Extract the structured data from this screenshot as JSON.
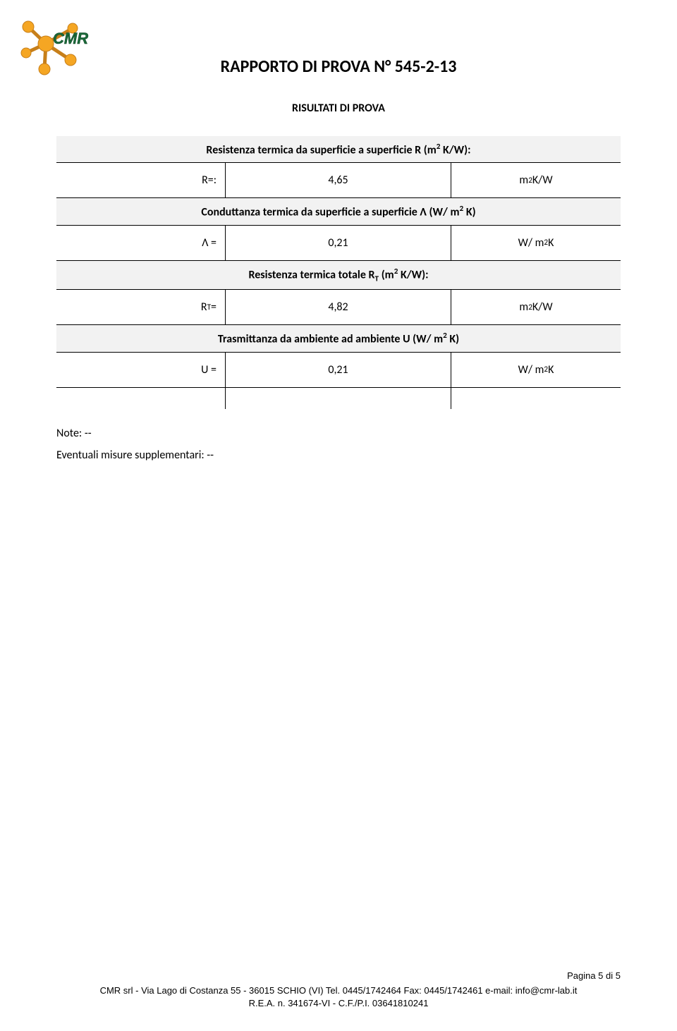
{
  "logo": {
    "text": "CMR",
    "text_color": "#1a6a3a",
    "node_color": "#f5a623",
    "stick_color": "#c77f1a"
  },
  "title": "RAPPORTO DI PROVA N° 545-2-13",
  "subtitle": "RISULTATI DI PROVA",
  "sections": [
    {
      "header_html": "Resistenza termica da superficie a superficie R (m<sup>2</sup> K/W):",
      "label": "R=:",
      "value": "4,65",
      "unit_html": "m<sup>2</sup> K/W"
    },
    {
      "header_html": "Conduttanza termica da superficie a superficie Λ (W/ m<sup>2</sup> K)",
      "label": "Λ  =",
      "value": "0,21",
      "unit_html": "W/ m<sup>2</sup> K"
    },
    {
      "header_html": "Resistenza termica totale R<sub>T</sub> (m<sup>2</sup> K/W):",
      "label_html": "R<sub>T</sub> =",
      "value": "4,82",
      "unit_html": "m<sup>2</sup> K/W"
    },
    {
      "header_html": "Trasmittanza da ambiente ad ambiente U (W/ m<sup>2</sup> K)",
      "label": "U =",
      "value": "0,21",
      "unit_html": "W/ m<sup>2</sup> K"
    }
  ],
  "notes": {
    "note": "Note: --",
    "supplementari": "Eventuali misure supplementari: --"
  },
  "footer": {
    "page": "Pagina 5 di 5",
    "line1": "CMR srl - Via Lago di Costanza 55 - 36015 SCHIO (VI) Tel. 0445/1742464  Fax: 0445/1742461 e-mail: info@cmr-lab.it",
    "line2": "R.E.A. n. 341674-VI - C.F./P.I. 03641810241"
  },
  "colors": {
    "section_bg": "#f2f2f2",
    "border": "#000000",
    "text": "#000000",
    "background": "#ffffff"
  }
}
